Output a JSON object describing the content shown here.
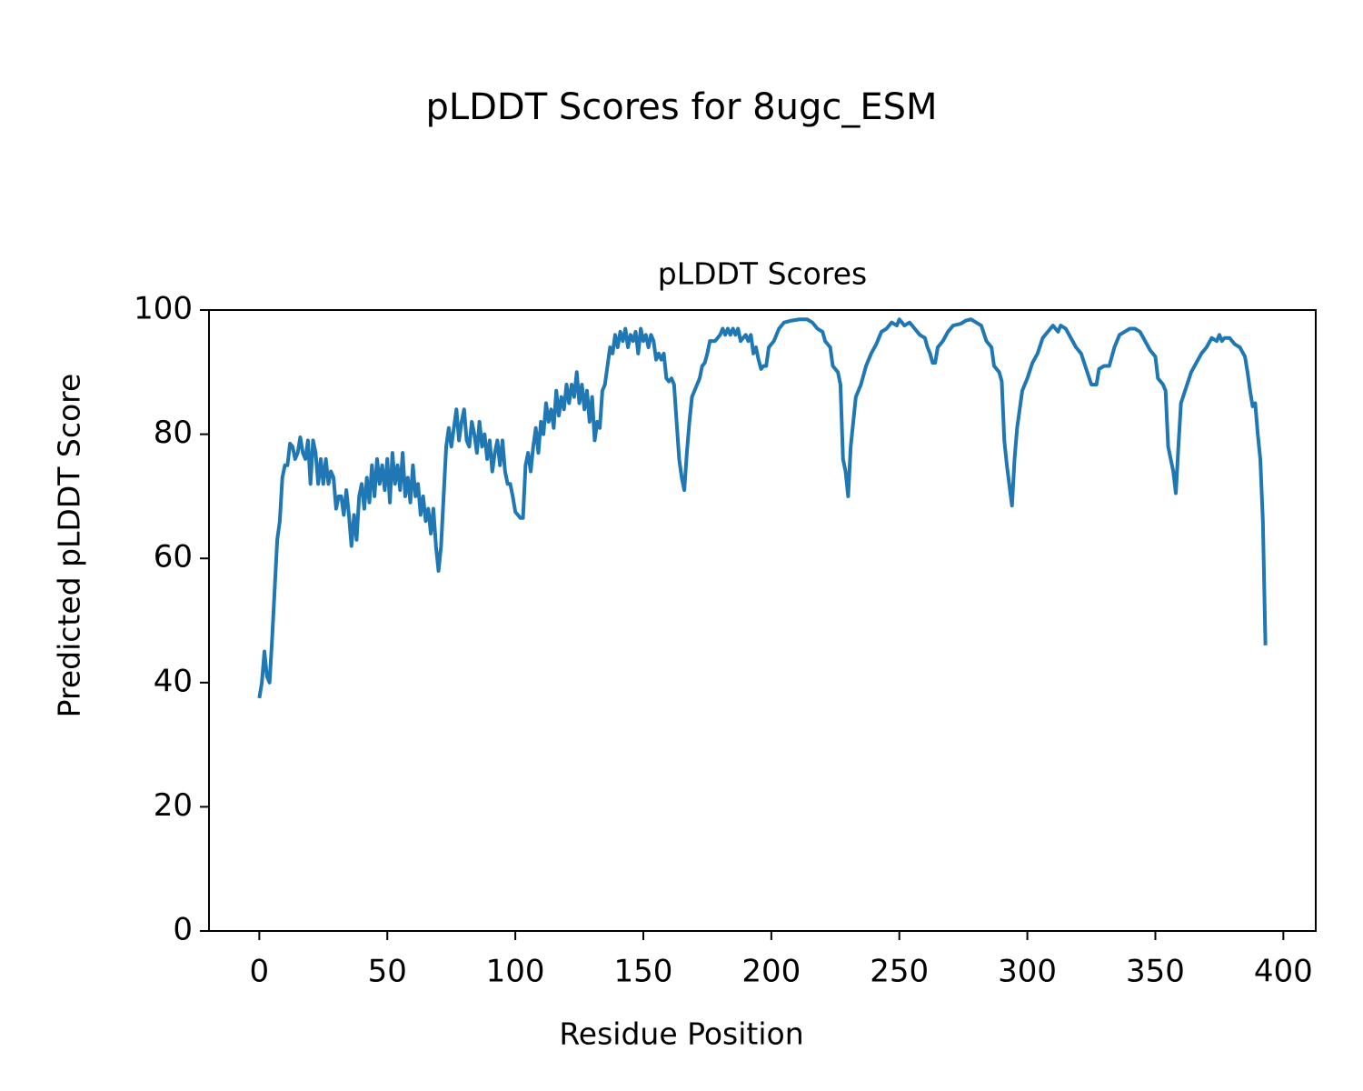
{
  "chart_data": {
    "type": "line",
    "suptitle": "pLDDT Scores for 8ugc_ESM",
    "title": "pLDDT Scores",
    "xlabel": "Residue Position",
    "ylabel": "Predicted pLDDT Score",
    "xlim": [
      -19.65,
      412.65
    ],
    "ylim": [
      0,
      100
    ],
    "xticks": [
      0,
      50,
      100,
      150,
      200,
      250,
      300,
      350,
      400
    ],
    "yticks": [
      0,
      20,
      40,
      60,
      80,
      100
    ],
    "series": [
      {
        "name": "pLDDT",
        "color": "#1f77b4",
        "x": [
          0,
          1,
          2,
          3,
          4,
          5,
          6,
          7,
          8,
          9,
          10,
          11,
          12,
          13,
          14,
          15,
          16,
          17,
          18,
          19,
          20,
          21,
          22,
          23,
          24,
          25,
          26,
          27,
          28,
          29,
          30,
          31,
          32,
          33,
          34,
          35,
          36,
          37,
          38,
          39,
          40,
          41,
          42,
          43,
          44,
          45,
          46,
          47,
          48,
          49,
          50,
          51,
          52,
          53,
          54,
          55,
          56,
          57,
          58,
          59,
          60,
          61,
          62,
          63,
          64,
          65,
          66,
          67,
          68,
          69,
          70,
          71,
          72,
          73,
          74,
          75,
          76,
          77,
          78,
          79,
          80,
          81,
          82,
          83,
          84,
          85,
          86,
          87,
          88,
          89,
          90,
          91,
          92,
          93,
          94,
          95,
          96,
          97,
          98,
          99,
          100,
          101,
          102,
          103,
          104,
          105,
          106,
          107,
          108,
          109,
          110,
          111,
          112,
          113,
          114,
          115,
          116,
          117,
          118,
          119,
          120,
          121,
          122,
          123,
          124,
          125,
          126,
          127,
          128,
          129,
          130,
          131,
          132,
          133,
          134,
          135,
          136,
          137,
          138,
          139,
          140,
          141,
          142,
          143,
          144,
          145,
          146,
          147,
          148,
          149,
          150,
          151,
          152,
          153,
          154,
          155,
          156,
          157,
          158,
          159,
          160,
          161,
          162,
          163,
          164,
          165,
          166,
          167,
          168,
          169,
          170,
          172,
          173,
          174,
          175,
          176,
          178,
          180,
          181,
          182,
          183,
          184,
          185,
          186,
          187,
          188,
          190,
          191,
          192,
          193,
          194,
          195,
          196,
          197,
          198,
          199,
          201,
          203,
          205,
          208,
          211,
          214,
          216,
          218,
          220,
          221,
          223,
          224,
          226,
          227,
          228,
          229,
          230,
          231,
          232,
          233,
          235,
          237,
          239,
          241,
          243,
          245,
          247,
          249,
          250,
          252,
          254,
          256,
          258,
          260,
          261,
          262,
          263,
          264,
          265,
          267,
          269,
          271,
          274,
          276,
          278,
          280,
          282,
          284,
          286,
          287,
          289,
          290,
          291,
          292,
          294,
          295,
          296,
          298,
          300,
          302,
          304,
          306,
          308,
          310,
          311,
          312,
          313,
          315,
          317,
          319,
          321,
          323,
          325,
          326,
          327,
          328,
          330,
          332,
          334,
          336,
          338,
          340,
          342,
          344,
          346,
          348,
          350,
          351,
          353,
          354,
          355,
          357,
          358,
          359,
          360,
          362,
          364,
          366,
          368,
          370,
          372,
          374,
          375,
          376,
          377,
          379,
          381,
          383,
          385,
          386,
          387,
          388,
          389,
          390,
          391,
          392,
          393
        ],
        "values": [
          37.5,
          40,
          45,
          41,
          40,
          47,
          55,
          63,
          66,
          73,
          75,
          75,
          78.5,
          78,
          76,
          77,
          79.5,
          77,
          76,
          79,
          72,
          79,
          77,
          72,
          76,
          72,
          76,
          72,
          74,
          73,
          68,
          70,
          70,
          67,
          71,
          67,
          62,
          67,
          63,
          70,
          72,
          68,
          73,
          69,
          75,
          70,
          76,
          72,
          75,
          71,
          76,
          69,
          77,
          72,
          75,
          71,
          77,
          70,
          73,
          69,
          75,
          70,
          72,
          67,
          70,
          66,
          68,
          64,
          68,
          62,
          58,
          62,
          70,
          78,
          81,
          78,
          81,
          84,
          79,
          82,
          84,
          79,
          78,
          82,
          80,
          77,
          82,
          78,
          80,
          76,
          79,
          74,
          77,
          79,
          75,
          79,
          74,
          72,
          72,
          70,
          67.5,
          67,
          66.5,
          66.5,
          75,
          77,
          74,
          78,
          81,
          77,
          82,
          80,
          85,
          82,
          84,
          81,
          87,
          83,
          86,
          84,
          88,
          85,
          88,
          86,
          90,
          85,
          88,
          84,
          87,
          82,
          86,
          79,
          82,
          81,
          87,
          88,
          91,
          94,
          93,
          96,
          94,
          96.5,
          95,
          97,
          94,
          96,
          95,
          96.5,
          93,
          97,
          95,
          96,
          94,
          96,
          95,
          92,
          93,
          92,
          93,
          89,
          88.5,
          89,
          88,
          82,
          76,
          73,
          71,
          77,
          82,
          86,
          87,
          89,
          91,
          91.5,
          93,
          95,
          95,
          96,
          97,
          96,
          97,
          96,
          97,
          96,
          97,
          95,
          96,
          95,
          96,
          93,
          94,
          92,
          90.5,
          91,
          91,
          94,
          95,
          97,
          98,
          98.3,
          98.5,
          98.5,
          98,
          97,
          96.5,
          95,
          94,
          91,
          90,
          88,
          76,
          74,
          70,
          78,
          82,
          86,
          88,
          91,
          93,
          94.5,
          96.5,
          97,
          98,
          97.5,
          98.5,
          97.5,
          98,
          97,
          96,
          95.5,
          94,
          93,
          91.5,
          91.5,
          94,
          95,
          96.5,
          97.5,
          97.8,
          98.3,
          98.5,
          98,
          97.5,
          95,
          94,
          91,
          90,
          88.5,
          79,
          75,
          68.5,
          76,
          81,
          87,
          89,
          91.5,
          93,
          95.5,
          96.5,
          97.5,
          97,
          96.5,
          97.5,
          97,
          95.5,
          94,
          93,
          90.5,
          88,
          88,
          88,
          90.5,
          91,
          91,
          94,
          96,
          96.5,
          97,
          97,
          96.5,
          95,
          93.5,
          92.5,
          89,
          88,
          87,
          78,
          74,
          70.5,
          78,
          85,
          87.5,
          90,
          91.5,
          93,
          94,
          95.5,
          95,
          96,
          95,
          95.5,
          95.5,
          94.5,
          94,
          92.5,
          90,
          87,
          84.5,
          85,
          80,
          76,
          66,
          46
        ]
      }
    ]
  }
}
